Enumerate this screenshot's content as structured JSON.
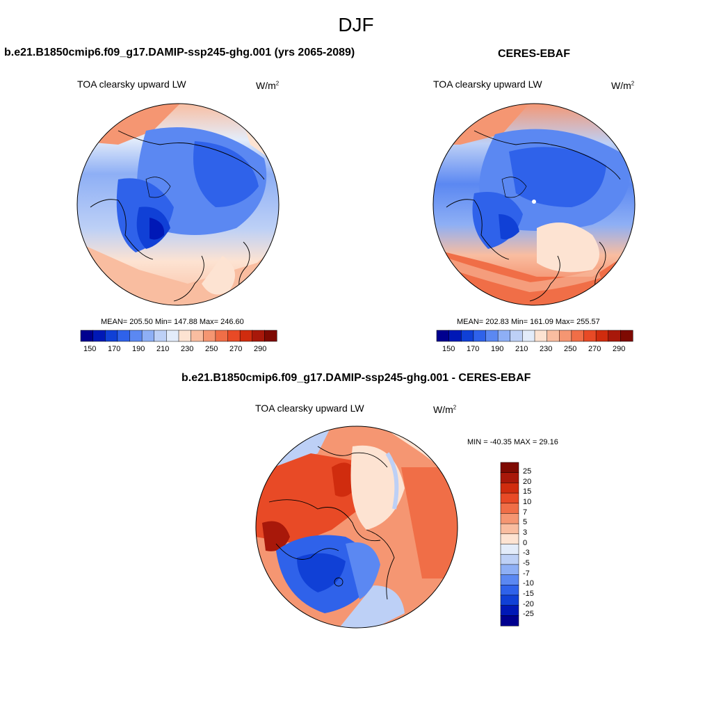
{
  "page": {
    "season": "DJF"
  },
  "panels": [
    {
      "title": "b.e21.B1850cmip6.f09_g17.DAMIP-ssp245-ghg.001 (yrs 2065-2089)",
      "variable": "TOA clearsky upward LW",
      "units_base": "W/m",
      "units_exp": "2",
      "stats": "MEAN= 205.50  Min= 147.88  Max= 246.60"
    },
    {
      "title": "CERES-EBAF",
      "variable": "TOA clearsky upward LW",
      "units_base": "W/m",
      "units_exp": "2",
      "stats": "MEAN= 202.83  Min= 161.09  Max= 255.57"
    },
    {
      "title": "b.e21.B1850cmip6.f09_g17.DAMIP-ssp245-ghg.001 - CERES-EBAF",
      "variable": "TOA clearsky upward LW",
      "units_base": "W/m",
      "units_exp": "2",
      "stats": "MIN = -40.35 MAX =  29.16"
    }
  ],
  "colorbar_abs": {
    "labels": [
      "150",
      "170",
      "190",
      "210",
      "230",
      "250",
      "270",
      "290"
    ],
    "colors": [
      "#00008f",
      "#0018b6",
      "#1040d6",
      "#2f62ea",
      "#5b88f2",
      "#8eaff5",
      "#bdd0f6",
      "#e3ecfa",
      "#fde3d2",
      "#f9bda0",
      "#f59672",
      "#f06e47",
      "#e84a26",
      "#d02c0e",
      "#a8180a",
      "#7e0a02"
    ]
  },
  "colorbar_diff": {
    "labels": [
      "25",
      "20",
      "15",
      "10",
      "7",
      "5",
      "3",
      "0",
      "-3",
      "-5",
      "-7",
      "-10",
      "-15",
      "-20",
      "-25"
    ],
    "colors": [
      "#7e0a02",
      "#a8180a",
      "#d02c0e",
      "#e84a26",
      "#f06e47",
      "#f59672",
      "#f9bda0",
      "#fde3d2",
      "#e3ecfa",
      "#bdd0f6",
      "#8eaff5",
      "#5b88f2",
      "#2f62ea",
      "#1040d6",
      "#0018b6",
      "#00008f"
    ]
  }
}
